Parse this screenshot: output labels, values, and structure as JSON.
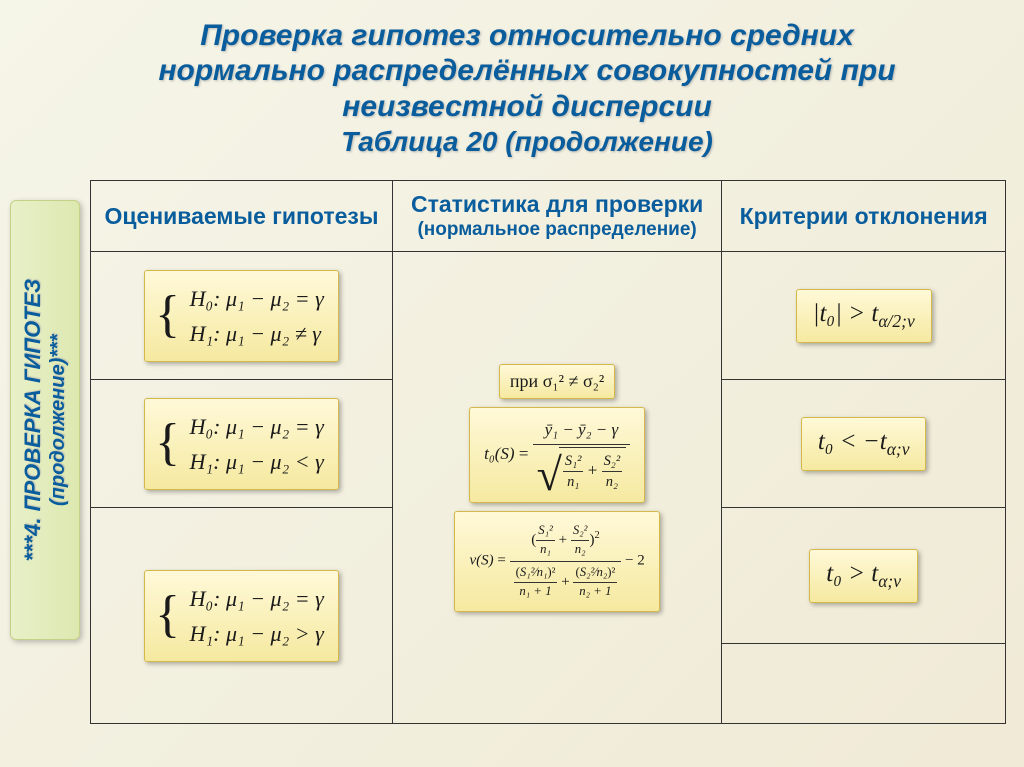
{
  "title": {
    "line1": "Проверка гипотез относительно средних",
    "line2": "нормально распределённых совокупностей при",
    "line3": "неизвестной дисперсии",
    "subtitle": "Таблица 20 (продолжение)"
  },
  "sidebar": {
    "main": "***4. ПРОВЕРКА ГИПОТЕЗ",
    "cont": "(продолжение)***"
  },
  "headers": {
    "col1": "Оцениваемые гипотезы",
    "col2_main": "Статистика для проверки",
    "col2_sub": "(нормальное распределение)",
    "col3": "Критерии отклонения"
  },
  "hypotheses": {
    "h0_common": "H₀:   μ₁ − μ₂ = γ",
    "h1_row1": "H₁:   μ₁ − μ₂ ≠ γ",
    "h1_row2": "H₁:   μ₁ − μ₂ < γ",
    "h1_row3": "H₁:   μ₁ − μ₂ > γ"
  },
  "statistic": {
    "condition": "при σ₁² ≠ σ₂²",
    "t_label": "t₀(S)",
    "t_numerator": "ȳ₁ − ȳ₂ − γ",
    "nu_label": "ν(S)",
    "minus2": " − 2"
  },
  "criteria": {
    "row1_left": "|t₀| > t",
    "row1_sub": "α/2;ν",
    "row2_left": "t₀ < −t",
    "row2_sub": "α;ν",
    "row3_left": "t₀ > t",
    "row3_sub": "α;ν"
  },
  "style": {
    "title_color": "#0a5d9c",
    "box_bg_top": "#fff9d8",
    "box_bg_bottom": "#f5e9a0",
    "box_border": "#d4b84a",
    "sidebar_bg_left": "#e8f0c8",
    "sidebar_bg_right": "#dde8b0",
    "page_bg": "#f5f5e8",
    "table_border": "#333333",
    "title_fontsize": 30,
    "subtitle_fontsize": 28,
    "header_fontsize": 23,
    "formula_fontsize": 22,
    "crit_fontsize": 25
  }
}
